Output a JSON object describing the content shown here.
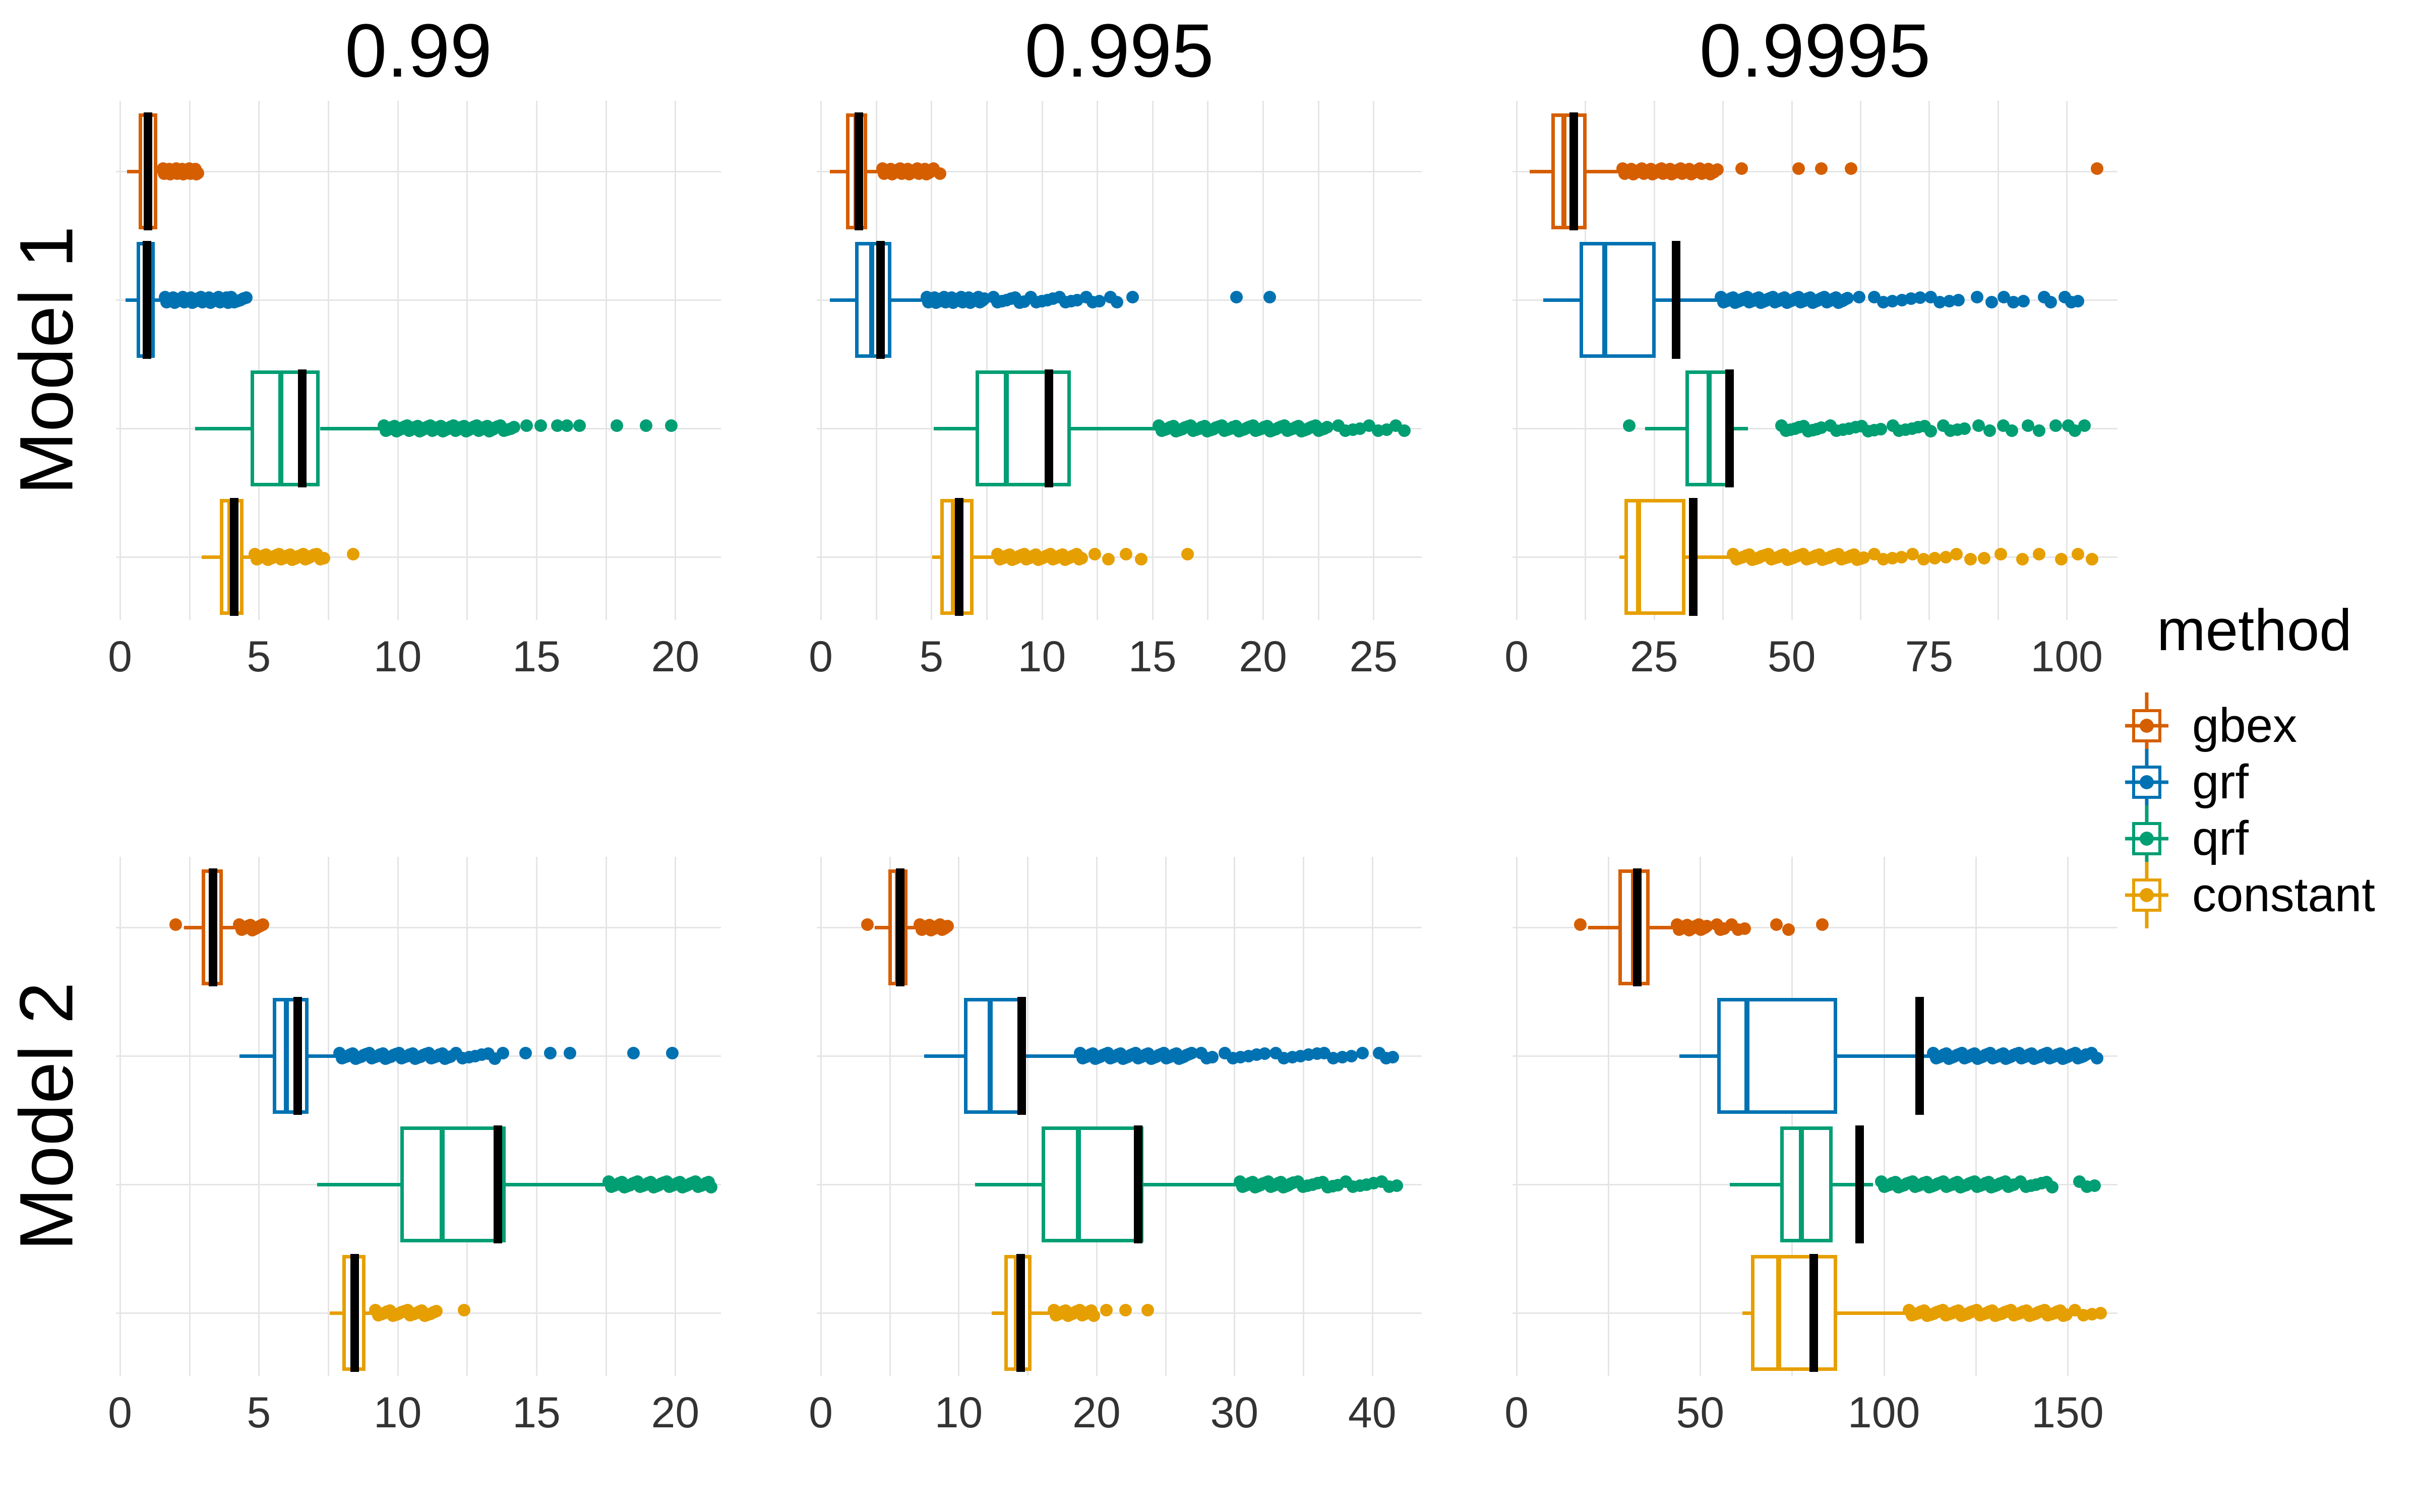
{
  "figure": {
    "background": "#ffffff"
  },
  "facet_titles": [
    "0.99",
    "0.995",
    "0.9995"
  ],
  "row_titles": [
    "Model 1",
    "Model 2"
  ],
  "legend": {
    "title": "method",
    "items": [
      {
        "label": "gbex",
        "color": "#D55E00"
      },
      {
        "label": "grf",
        "color": "#0072B2"
      },
      {
        "label": "qrf",
        "color": "#009E73"
      },
      {
        "label": "constant",
        "color": "#E69F00"
      }
    ]
  },
  "style": {
    "grid_color": "#e5e5e5",
    "tick_label_color": "#333333",
    "title_color": "#000000",
    "reference_line_color": "#000000",
    "box_fill": "#ffffff"
  },
  "chart_data": [
    {
      "type": "boxplot",
      "row": "Model 1",
      "col": "0.99",
      "row_index": 0,
      "col_index": 0,
      "xlim": [
        0,
        21.5
      ],
      "ticks": [
        0,
        5,
        10,
        15,
        20
      ],
      "grid_step": 2.5,
      "legend_position": "right",
      "boxes": [
        {
          "method": "gbex",
          "color": "#D55E00",
          "whisker_lo": 0.25,
          "q1": 0.68,
          "median": 1.05,
          "q3": 1.35,
          "whisker_hi": 1.5,
          "ref_line": 1.0,
          "outliers": [
            [
              1.55,
              2.8,
              30
            ]
          ]
        },
        {
          "method": "grf",
          "color": "#0072B2",
          "whisker_lo": 0.2,
          "q1": 0.6,
          "median": 0.9,
          "q3": 1.26,
          "whisker_hi": 1.6,
          "ref_line": 0.97,
          "outliers": [
            [
              1.62,
              3.9,
              40
            ],
            [
              4.0,
              4.55,
              6
            ]
          ]
        },
        {
          "method": "qrf",
          "color": "#009E73",
          "whisker_lo": 2.7,
          "q1": 4.7,
          "median": 5.8,
          "q3": 7.2,
          "whisker_hi": 9.45,
          "ref_line": 6.55,
          "outliers": [
            [
              9.5,
              13.6,
              55
            ],
            [
              13.7,
              14.2,
              5
            ],
            [
              14.65,
              14.65,
              1
            ],
            [
              15.15,
              15.15,
              1
            ],
            [
              15.75,
              15.75,
              1
            ],
            [
              16.1,
              16.1,
              1
            ],
            [
              16.55,
              16.55,
              1
            ],
            [
              17.9,
              17.9,
              1
            ],
            [
              18.95,
              18.95,
              1
            ],
            [
              19.85,
              19.85,
              1
            ]
          ]
        },
        {
          "method": "constant",
          "color": "#E69F00",
          "whisker_lo": 2.95,
          "q1": 3.6,
          "median": 3.95,
          "q3": 4.45,
          "whisker_hi": 4.8,
          "ref_line": 4.1,
          "outliers": [
            [
              4.85,
              7.0,
              28
            ],
            [
              7.1,
              7.35,
              3
            ],
            [
              8.4,
              8.4,
              1
            ]
          ]
        }
      ]
    },
    {
      "type": "boxplot",
      "row": "Model 1",
      "col": "0.995",
      "row_index": 0,
      "col_index": 1,
      "xlim": [
        0,
        27.0
      ],
      "ticks": [
        0,
        5,
        10,
        15,
        20,
        25
      ],
      "grid_step": 2.5,
      "boxes": [
        {
          "method": "gbex",
          "color": "#D55E00",
          "whisker_lo": 0.4,
          "q1": 1.15,
          "median": 1.6,
          "q3": 2.1,
          "whisker_hi": 2.75,
          "ref_line": 1.7,
          "outliers": [
            [
              2.8,
              5.0,
              32
            ],
            [
              5.1,
              5.4,
              2
            ]
          ]
        },
        {
          "method": "grf",
          "color": "#0072B2",
          "whisker_lo": 0.4,
          "q1": 1.55,
          "median": 2.3,
          "q3": 3.2,
          "whisker_hi": 4.75,
          "ref_line": 2.7,
          "outliers": [
            [
              4.8,
              7.4,
              38
            ],
            [
              7.8,
              9.2,
              8
            ],
            [
              9.5,
              10.5,
              5
            ],
            [
              10.8,
              11.6,
              4
            ],
            [
              12.0,
              12.6,
              3
            ],
            [
              13.1,
              13.4,
              2
            ],
            [
              14.1,
              14.1,
              1
            ],
            [
              18.8,
              18.8,
              1
            ],
            [
              20.3,
              20.3,
              1
            ]
          ]
        },
        {
          "method": "qrf",
          "color": "#009E73",
          "whisker_lo": 5.1,
          "q1": 7.0,
          "median": 8.4,
          "q3": 11.3,
          "whisker_hi": 15.1,
          "ref_line": 10.3,
          "outliers": [
            [
              15.3,
              22.9,
              60
            ],
            [
              23.4,
              24.4,
              4
            ],
            [
              24.8,
              25.6,
              3
            ],
            [
              26.0,
              26.4,
              2
            ]
          ]
        },
        {
          "method": "constant",
          "color": "#E69F00",
          "whisker_lo": 5.05,
          "q1": 5.4,
          "median": 6.0,
          "q3": 6.9,
          "whisker_hi": 7.95,
          "ref_line": 6.25,
          "outliers": [
            [
              8.0,
              11.8,
              36
            ],
            [
              12.4,
              13.0,
              2
            ],
            [
              13.8,
              14.5,
              2
            ],
            [
              16.6,
              16.6,
              1
            ]
          ]
        }
      ]
    },
    {
      "type": "boxplot",
      "row": "Model 1",
      "col": "0.9995",
      "row_index": 0,
      "col_index": 2,
      "xlim": [
        0,
        108.5
      ],
      "ticks": [
        0,
        25,
        50,
        75,
        100
      ],
      "grid_step": 12.5,
      "boxes": [
        {
          "method": "gbex",
          "color": "#D55E00",
          "whisker_lo": 2.4,
          "q1": 6.3,
          "median": 8.6,
          "q3": 12.7,
          "whisker_hi": 19.0,
          "ref_line": 10.4,
          "outliers": [
            [
              19.3,
              36.5,
              55
            ],
            [
              40.9,
              40.9,
              1
            ],
            [
              51.3,
              51.3,
              1
            ],
            [
              55.4,
              55.4,
              1
            ],
            [
              60.8,
              60.8,
              1
            ],
            [
              105.5,
              105.5,
              1
            ]
          ]
        },
        {
          "method": "grf",
          "color": "#0072B2",
          "whisker_lo": 4.9,
          "q1": 11.5,
          "median": 16.0,
          "q3": 25.3,
          "whisker_hi": 37.0,
          "ref_line": 29.0,
          "outliers": [
            [
              37.2,
              60.2,
              55
            ],
            [
              62.3,
              62.3,
              1
            ],
            [
              65.0,
              73.4,
              6
            ],
            [
              75.3,
              80.3,
              4
            ],
            [
              83.7,
              86.4,
              2
            ],
            [
              88.6,
              92.1,
              3
            ],
            [
              95.9,
              97.1,
              2
            ],
            [
              99.7,
              102.0,
              3
            ]
          ]
        },
        {
          "method": "qrf",
          "color": "#009E73",
          "whisker_lo": 23.4,
          "q1": 30.7,
          "median": 35.0,
          "q3": 39.4,
          "whisker_hi": 42.1,
          "ref_line": 38.7,
          "outliers": [
            [
              20.5,
              20.5,
              1
            ],
            [
              48.2,
              55.4,
              10
            ],
            [
              57.0,
              66.2,
              9
            ],
            [
              68.4,
              75.3,
              7
            ],
            [
              77.6,
              81.4,
              4
            ],
            [
              84.0,
              86.0,
              2
            ],
            [
              88.5,
              90.0,
              2
            ],
            [
              93.0,
              95.0,
              2
            ],
            [
              98.0,
              98.0,
              1
            ],
            [
              100.3,
              101.5,
              2
            ],
            [
              103.2,
              103.2,
              1
            ]
          ]
        },
        {
          "method": "constant",
          "color": "#E69F00",
          "whisker_lo": 18.7,
          "q1": 19.6,
          "median": 22.2,
          "q3": 30.7,
          "whisker_hi": 39.0,
          "ref_line": 32.1,
          "outliers": [
            [
              39.4,
              63.1,
              42
            ],
            [
              65.0,
              70.0,
              4
            ],
            [
              72.0,
              78.0,
              4
            ],
            [
              80.0,
              85.0,
              3
            ],
            [
              88.0,
              92.0,
              2
            ],
            [
              95.0,
              99.0,
              2
            ],
            [
              102.0,
              104.6,
              2
            ]
          ]
        }
      ]
    },
    {
      "type": "boxplot",
      "row": "Model 2",
      "col": "0.99",
      "row_index": 1,
      "col_index": 0,
      "xlim": [
        0,
        21.5
      ],
      "ticks": [
        0,
        5,
        10,
        15,
        20
      ],
      "grid_step": 2.5,
      "boxes": [
        {
          "method": "gbex",
          "color": "#D55E00",
          "whisker_lo": 2.3,
          "q1": 2.95,
          "median": 3.3,
          "q3": 3.7,
          "whisker_hi": 4.25,
          "ref_line": 3.35,
          "outliers": [
            [
              2.0,
              2.0,
              1
            ],
            [
              4.3,
              5.15,
              12
            ]
          ]
        },
        {
          "method": "grf",
          "color": "#0072B2",
          "whisker_lo": 4.3,
          "q1": 5.5,
          "median": 6.0,
          "q3": 6.8,
          "whisker_hi": 7.85,
          "ref_line": 6.4,
          "outliers": [
            [
              7.9,
              11.9,
              42
            ],
            [
              12.1,
              13.5,
              7
            ],
            [
              13.8,
              13.8,
              1
            ],
            [
              14.6,
              14.6,
              1
            ],
            [
              15.5,
              15.5,
              1
            ],
            [
              16.2,
              16.2,
              1
            ],
            [
              18.5,
              18.5,
              1
            ],
            [
              19.9,
              19.9,
              1
            ]
          ]
        },
        {
          "method": "qrf",
          "color": "#009E73",
          "whisker_lo": 7.1,
          "q1": 10.1,
          "median": 11.6,
          "q3": 13.9,
          "whisker_hi": 17.5,
          "ref_line": 13.6,
          "outliers": [
            [
              17.6,
              21.3,
              40
            ]
          ]
        },
        {
          "method": "constant",
          "color": "#E69F00",
          "whisker_lo": 7.55,
          "q1": 8.0,
          "median": 8.4,
          "q3": 8.85,
          "whisker_hi": 9.15,
          "ref_line": 8.45,
          "outliers": [
            [
              9.2,
              11.4,
              22
            ],
            [
              12.4,
              12.4,
              1
            ]
          ]
        }
      ]
    },
    {
      "type": "boxplot",
      "row": "Model 2",
      "col": "0.995",
      "row_index": 1,
      "col_index": 1,
      "xlim": [
        0,
        43.3
      ],
      "ticks": [
        0,
        10,
        20,
        30,
        40
      ],
      "grid_step": 5,
      "boxes": [
        {
          "method": "gbex",
          "color": "#D55E00",
          "whisker_lo": 3.9,
          "q1": 4.9,
          "median": 5.55,
          "q3": 6.3,
          "whisker_hi": 6.95,
          "ref_line": 5.75,
          "outliers": [
            [
              3.4,
              3.4,
              1
            ],
            [
              7.2,
              9.2,
              16
            ]
          ]
        },
        {
          "method": "grf",
          "color": "#0072B2",
          "whisker_lo": 7.5,
          "q1": 10.4,
          "median": 12.3,
          "q3": 14.7,
          "whisker_hi": 18.7,
          "ref_line": 14.55,
          "outliers": [
            [
              18.8,
              26.9,
              45
            ],
            [
              27.6,
              28.4,
              3
            ],
            [
              29.3,
              32.2,
              6
            ],
            [
              33.0,
              36.0,
              6
            ],
            [
              36.5,
              38.5,
              4
            ],
            [
              39.3,
              39.3,
              1
            ],
            [
              40.5,
              41.5,
              3
            ]
          ]
        },
        {
          "method": "qrf",
          "color": "#009E73",
          "whisker_lo": 11.2,
          "q1": 16.0,
          "median": 18.7,
          "q3": 23.4,
          "whisker_hi": 30.2,
          "ref_line": 23.0,
          "outliers": [
            [
              30.4,
              34.3,
              22
            ],
            [
              34.6,
              37.5,
              9
            ],
            [
              38.1,
              40.1,
              5
            ],
            [
              40.7,
              41.8,
              3
            ]
          ]
        },
        {
          "method": "constant",
          "color": "#E69F00",
          "whisker_lo": 12.4,
          "q1": 13.3,
          "median": 14.2,
          "q3": 15.3,
          "whisker_hi": 16.8,
          "ref_line": 14.5,
          "outliers": [
            [
              16.9,
              19.8,
              18
            ],
            [
              20.7,
              20.7,
              1
            ],
            [
              22.1,
              22.1,
              1
            ],
            [
              23.7,
              23.7,
              1
            ]
          ]
        }
      ]
    },
    {
      "type": "boxplot",
      "row": "Model 2",
      "col": "0.9995",
      "row_index": 1,
      "col_index": 2,
      "xlim": [
        0,
        162.5
      ],
      "ticks": [
        0,
        50,
        100,
        150
      ],
      "grid_step": 25,
      "boxes": [
        {
          "method": "gbex",
          "color": "#D55E00",
          "whisker_lo": 19.5,
          "q1": 27.7,
          "median": 31.8,
          "q3": 36.2,
          "whisker_hi": 42.5,
          "ref_line": 32.8,
          "outliers": [
            [
              17.3,
              17.3,
              1
            ],
            [
              43.7,
              51.8,
              16
            ],
            [
              54.6,
              56.5,
              3
            ],
            [
              58.5,
              62.1,
              3
            ],
            [
              70.7,
              74.1,
              2
            ],
            [
              83.2,
              83.2,
              1
            ]
          ]
        },
        {
          "method": "grf",
          "color": "#0072B2",
          "whisker_lo": 44.3,
          "q1": 54.6,
          "median": 62.7,
          "q3": 87.3,
          "whisker_hi": 112.5,
          "ref_line": 109.7,
          "outliers": [
            [
              113.5,
              155.0,
              60
            ],
            [
              156.5,
              158.0,
              2
            ]
          ]
        },
        {
          "method": "qrf",
          "color": "#009E73",
          "whisker_lo": 58.0,
          "q1": 71.8,
          "median": 77.5,
          "q3": 86.1,
          "whisker_hi": 97.0,
          "ref_line": 93.3,
          "outliers": [
            [
              99.3,
              135.4,
              48
            ],
            [
              137.2,
              145.8,
              7
            ],
            [
              153.2,
              157.3,
              3
            ]
          ]
        },
        {
          "method": "constant",
          "color": "#E69F00",
          "whisker_lo": 61.5,
          "q1": 63.8,
          "median": 71.3,
          "q3": 87.3,
          "whisker_hi": 106.2,
          "ref_line": 80.9,
          "outliers": [
            [
              106.8,
              149.7,
              52
            ],
            [
              152.0,
              159.0,
              4
            ]
          ]
        }
      ]
    }
  ]
}
